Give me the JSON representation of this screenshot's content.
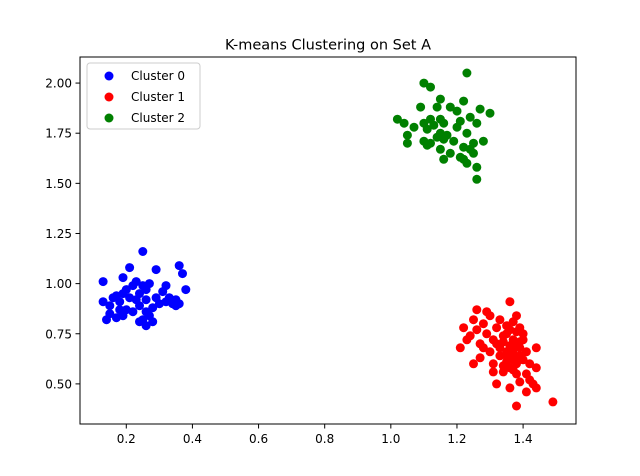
{
  "chart_data": {
    "type": "scatter",
    "title": "K-means Clustering on Set A",
    "xlabel": "",
    "ylabel": "",
    "xlim": [
      0.06,
      1.56
    ],
    "ylim": [
      0.3,
      2.13
    ],
    "xticks": [
      0.2,
      0.4,
      0.6,
      0.8,
      1.0,
      1.2,
      1.4
    ],
    "xtick_labels": [
      "0.2",
      "0.4",
      "0.6",
      "0.8",
      "1.0",
      "1.2",
      "1.4"
    ],
    "yticks": [
      0.5,
      0.75,
      1.0,
      1.25,
      1.5,
      1.75,
      2.0
    ],
    "ytick_labels": [
      "0.50",
      "0.75",
      "1.00",
      "1.25",
      "1.50",
      "1.75",
      "2.00"
    ],
    "grid": false,
    "legend": "top-left",
    "series": [
      {
        "name": "Cluster 0",
        "color": "#0000ff",
        "points": [
          [
            0.13,
            1.01
          ],
          [
            0.13,
            0.91
          ],
          [
            0.14,
            0.82
          ],
          [
            0.15,
            0.85
          ],
          [
            0.15,
            0.89
          ],
          [
            0.16,
            0.93
          ],
          [
            0.17,
            0.83
          ],
          [
            0.17,
            0.94
          ],
          [
            0.18,
            0.87
          ],
          [
            0.18,
            0.91
          ],
          [
            0.19,
            0.84
          ],
          [
            0.19,
            0.95
          ],
          [
            0.19,
            1.03
          ],
          [
            0.2,
            0.87
          ],
          [
            0.2,
            0.97
          ],
          [
            0.21,
            1.08
          ],
          [
            0.21,
            0.93
          ],
          [
            0.22,
            0.86
          ],
          [
            0.22,
            0.99
          ],
          [
            0.23,
            1.01
          ],
          [
            0.23,
            0.92
          ],
          [
            0.24,
            0.81
          ],
          [
            0.24,
            0.89
          ],
          [
            0.24,
            0.95
          ],
          [
            0.25,
            1.16
          ],
          [
            0.25,
            0.82
          ],
          [
            0.25,
            0.99
          ],
          [
            0.26,
            0.79
          ],
          [
            0.26,
            0.86
          ],
          [
            0.26,
            0.92
          ],
          [
            0.26,
            0.97
          ],
          [
            0.27,
            0.84
          ],
          [
            0.27,
            1.0
          ],
          [
            0.28,
            0.81
          ],
          [
            0.28,
            0.88
          ],
          [
            0.29,
            0.93
          ],
          [
            0.29,
            1.07
          ],
          [
            0.3,
            0.9
          ],
          [
            0.31,
            0.96
          ],
          [
            0.32,
            0.99
          ],
          [
            0.32,
            0.91
          ],
          [
            0.33,
            0.93
          ],
          [
            0.34,
            0.9
          ],
          [
            0.35,
            0.92
          ],
          [
            0.35,
            0.89
          ],
          [
            0.36,
            1.09
          ],
          [
            0.36,
            0.9
          ],
          [
            0.37,
            1.05
          ],
          [
            0.38,
            0.97
          ]
        ]
      },
      {
        "name": "Cluster 1",
        "color": "#ff0000",
        "points": [
          [
            1.21,
            0.68
          ],
          [
            1.22,
            0.78
          ],
          [
            1.23,
            0.72
          ],
          [
            1.24,
            0.74
          ],
          [
            1.25,
            0.6
          ],
          [
            1.25,
            0.82
          ],
          [
            1.26,
            0.77
          ],
          [
            1.26,
            0.87
          ],
          [
            1.27,
            0.63
          ],
          [
            1.27,
            0.7
          ],
          [
            1.28,
            0.68
          ],
          [
            1.28,
            0.8
          ],
          [
            1.29,
            0.86
          ],
          [
            1.29,
            0.75
          ],
          [
            1.3,
            0.66
          ],
          [
            1.3,
            0.84
          ],
          [
            1.31,
            0.6
          ],
          [
            1.31,
            0.72
          ],
          [
            1.31,
            0.56
          ],
          [
            1.32,
            0.7
          ],
          [
            1.32,
            0.78
          ],
          [
            1.32,
            0.5
          ],
          [
            1.33,
            0.64
          ],
          [
            1.33,
            0.82
          ],
          [
            1.33,
            0.68
          ],
          [
            1.34,
            0.59
          ],
          [
            1.34,
            0.74
          ],
          [
            1.34,
            0.56
          ],
          [
            1.34,
            0.71
          ],
          [
            1.35,
            0.66
          ],
          [
            1.35,
            0.79
          ],
          [
            1.35,
            0.61
          ],
          [
            1.35,
            0.75
          ],
          [
            1.36,
            0.58
          ],
          [
            1.36,
            0.69
          ],
          [
            1.36,
            0.63
          ],
          [
            1.36,
            0.48
          ],
          [
            1.36,
            0.91
          ],
          [
            1.36,
            0.77
          ],
          [
            1.37,
            0.65
          ],
          [
            1.37,
            0.81
          ],
          [
            1.37,
            0.57
          ],
          [
            1.37,
            0.72
          ],
          [
            1.37,
            0.67
          ],
          [
            1.38,
            0.6
          ],
          [
            1.38,
            0.39
          ],
          [
            1.38,
            0.76
          ],
          [
            1.38,
            0.84
          ],
          [
            1.38,
            0.7
          ],
          [
            1.38,
            0.55
          ],
          [
            1.39,
            0.64
          ],
          [
            1.39,
            0.78
          ],
          [
            1.39,
            0.51
          ],
          [
            1.39,
            0.68
          ],
          [
            1.4,
            0.62
          ],
          [
            1.4,
            0.72
          ],
          [
            1.4,
            0.75
          ],
          [
            1.41,
            0.55
          ],
          [
            1.41,
            0.46
          ],
          [
            1.41,
            0.66
          ],
          [
            1.42,
            0.6
          ],
          [
            1.42,
            0.52
          ],
          [
            1.43,
            0.5
          ],
          [
            1.44,
            0.68
          ],
          [
            1.44,
            0.58
          ],
          [
            1.44,
            0.48
          ],
          [
            1.49,
            0.41
          ],
          [
            1.37,
            0.62
          ],
          [
            1.35,
            0.64
          ],
          [
            1.39,
            0.71
          ]
        ]
      },
      {
        "name": "Cluster 2",
        "color": "#008000",
        "points": [
          [
            1.02,
            1.82
          ],
          [
            1.04,
            1.8
          ],
          [
            1.05,
            1.74
          ],
          [
            1.05,
            1.7
          ],
          [
            1.07,
            1.78
          ],
          [
            1.09,
            1.88
          ],
          [
            1.1,
            2.0
          ],
          [
            1.1,
            1.71
          ],
          [
            1.1,
            1.8
          ],
          [
            1.11,
            1.69
          ],
          [
            1.11,
            1.77
          ],
          [
            1.12,
            1.98
          ],
          [
            1.12,
            1.82
          ],
          [
            1.12,
            1.7
          ],
          [
            1.13,
            1.79
          ],
          [
            1.14,
            1.88
          ],
          [
            1.14,
            1.73
          ],
          [
            1.15,
            1.92
          ],
          [
            1.15,
            1.75
          ],
          [
            1.15,
            1.67
          ],
          [
            1.15,
            1.82
          ],
          [
            1.16,
            1.62
          ],
          [
            1.16,
            1.72
          ],
          [
            1.16,
            1.8
          ],
          [
            1.17,
            1.74
          ],
          [
            1.18,
            1.88
          ],
          [
            1.18,
            1.65
          ],
          [
            1.19,
            1.71
          ],
          [
            1.2,
            1.86
          ],
          [
            1.2,
            1.78
          ],
          [
            1.21,
            1.81
          ],
          [
            1.21,
            1.63
          ],
          [
            1.22,
            1.62
          ],
          [
            1.22,
            1.68
          ],
          [
            1.22,
            1.91
          ],
          [
            1.23,
            1.6
          ],
          [
            1.23,
            2.05
          ],
          [
            1.23,
            1.75
          ],
          [
            1.24,
            1.83
          ],
          [
            1.24,
            1.67
          ],
          [
            1.25,
            1.65
          ],
          [
            1.25,
            1.7
          ],
          [
            1.26,
            1.52
          ],
          [
            1.26,
            1.8
          ],
          [
            1.26,
            1.58
          ],
          [
            1.27,
            1.87
          ],
          [
            1.28,
            1.71
          ],
          [
            1.3,
            1.85
          ]
        ]
      }
    ]
  }
}
